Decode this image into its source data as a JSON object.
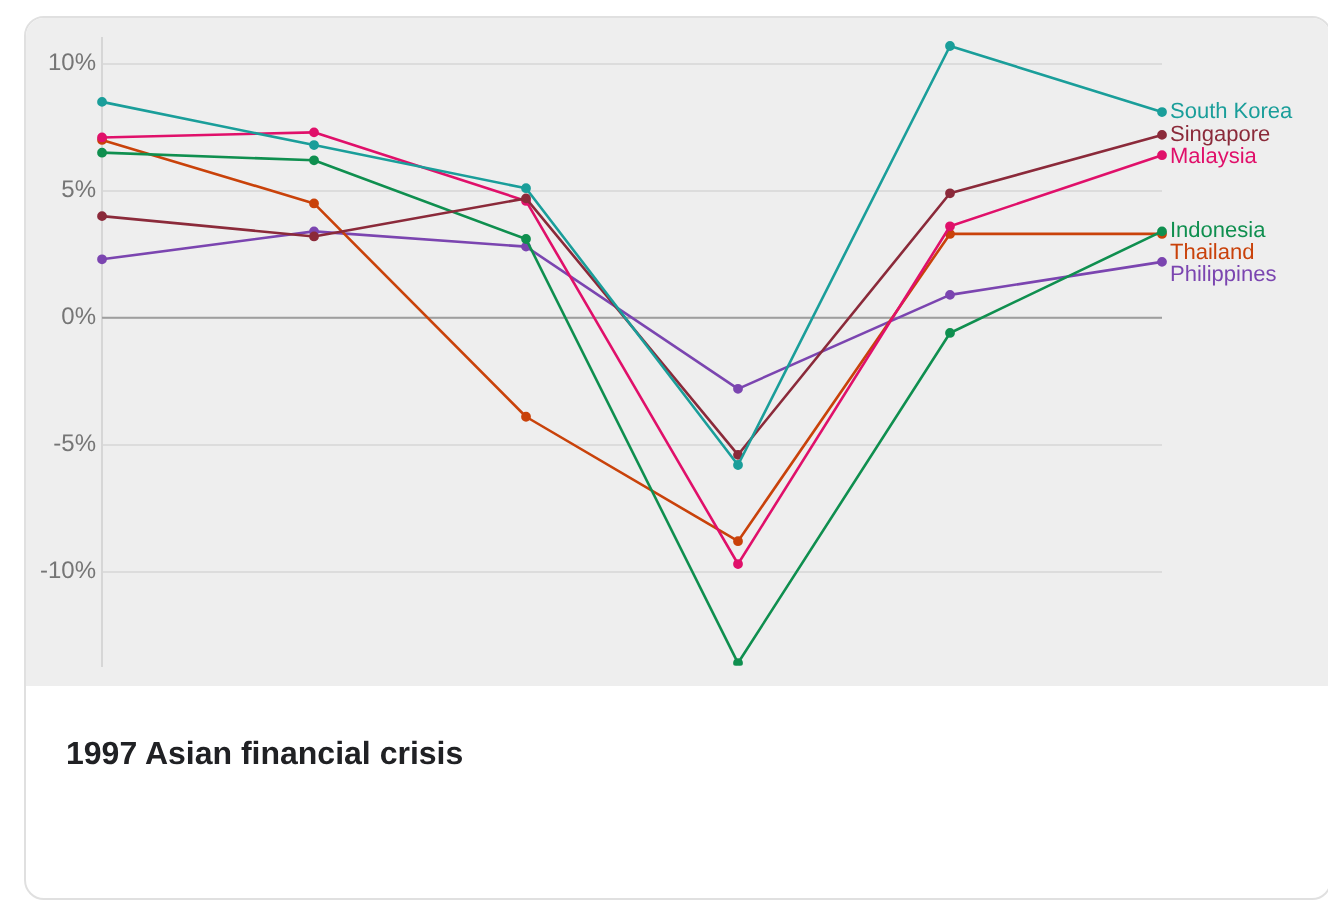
{
  "chart_data": {
    "type": "line",
    "title": "1997 Asian financial crisis",
    "categories": [
      null,
      null,
      null,
      null,
      null,
      null
    ],
    "series": [
      {
        "name": "South Korea",
        "color": "#1a9e9a",
        "values": [
          8.5,
          6.8,
          5.1,
          -5.8,
          10.7,
          8.1
        ]
      },
      {
        "name": "Singapore",
        "color": "#8b2a3a",
        "values": [
          4.0,
          3.2,
          4.7,
          -5.4,
          4.9,
          7.2
        ]
      },
      {
        "name": "Malaysia",
        "color": "#e0106a",
        "values": [
          7.1,
          7.3,
          4.6,
          -9.7,
          3.6,
          6.4
        ]
      },
      {
        "name": "Indonesia",
        "color": "#0f8f4f",
        "values": [
          6.5,
          6.2,
          3.1,
          -13.6,
          -0.6,
          3.4
        ]
      },
      {
        "name": "Thailand",
        "color": "#c9420a",
        "values": [
          7.0,
          4.5,
          -3.9,
          -8.8,
          3.3,
          3.3
        ]
      },
      {
        "name": "Philippines",
        "color": "#7b45b0",
        "values": [
          2.3,
          3.4,
          2.8,
          -2.8,
          0.9,
          2.2
        ]
      }
    ],
    "ylim": [
      -13.7,
      11
    ],
    "yticks": [
      {
        "value": -10,
        "label": "-10%"
      },
      {
        "value": -5,
        "label": "-5%"
      },
      {
        "value": 0,
        "label": "0%"
      },
      {
        "value": 5,
        "label": "5%"
      },
      {
        "value": 10,
        "label": "10%"
      }
    ],
    "ref_lines": [
      {
        "axis": "y",
        "value": 0,
        "color": "#9e9e9e"
      }
    ],
    "grid": "y",
    "legend": false,
    "marker": "circle",
    "line_style": "solid",
    "tick_labels": "y"
  }
}
